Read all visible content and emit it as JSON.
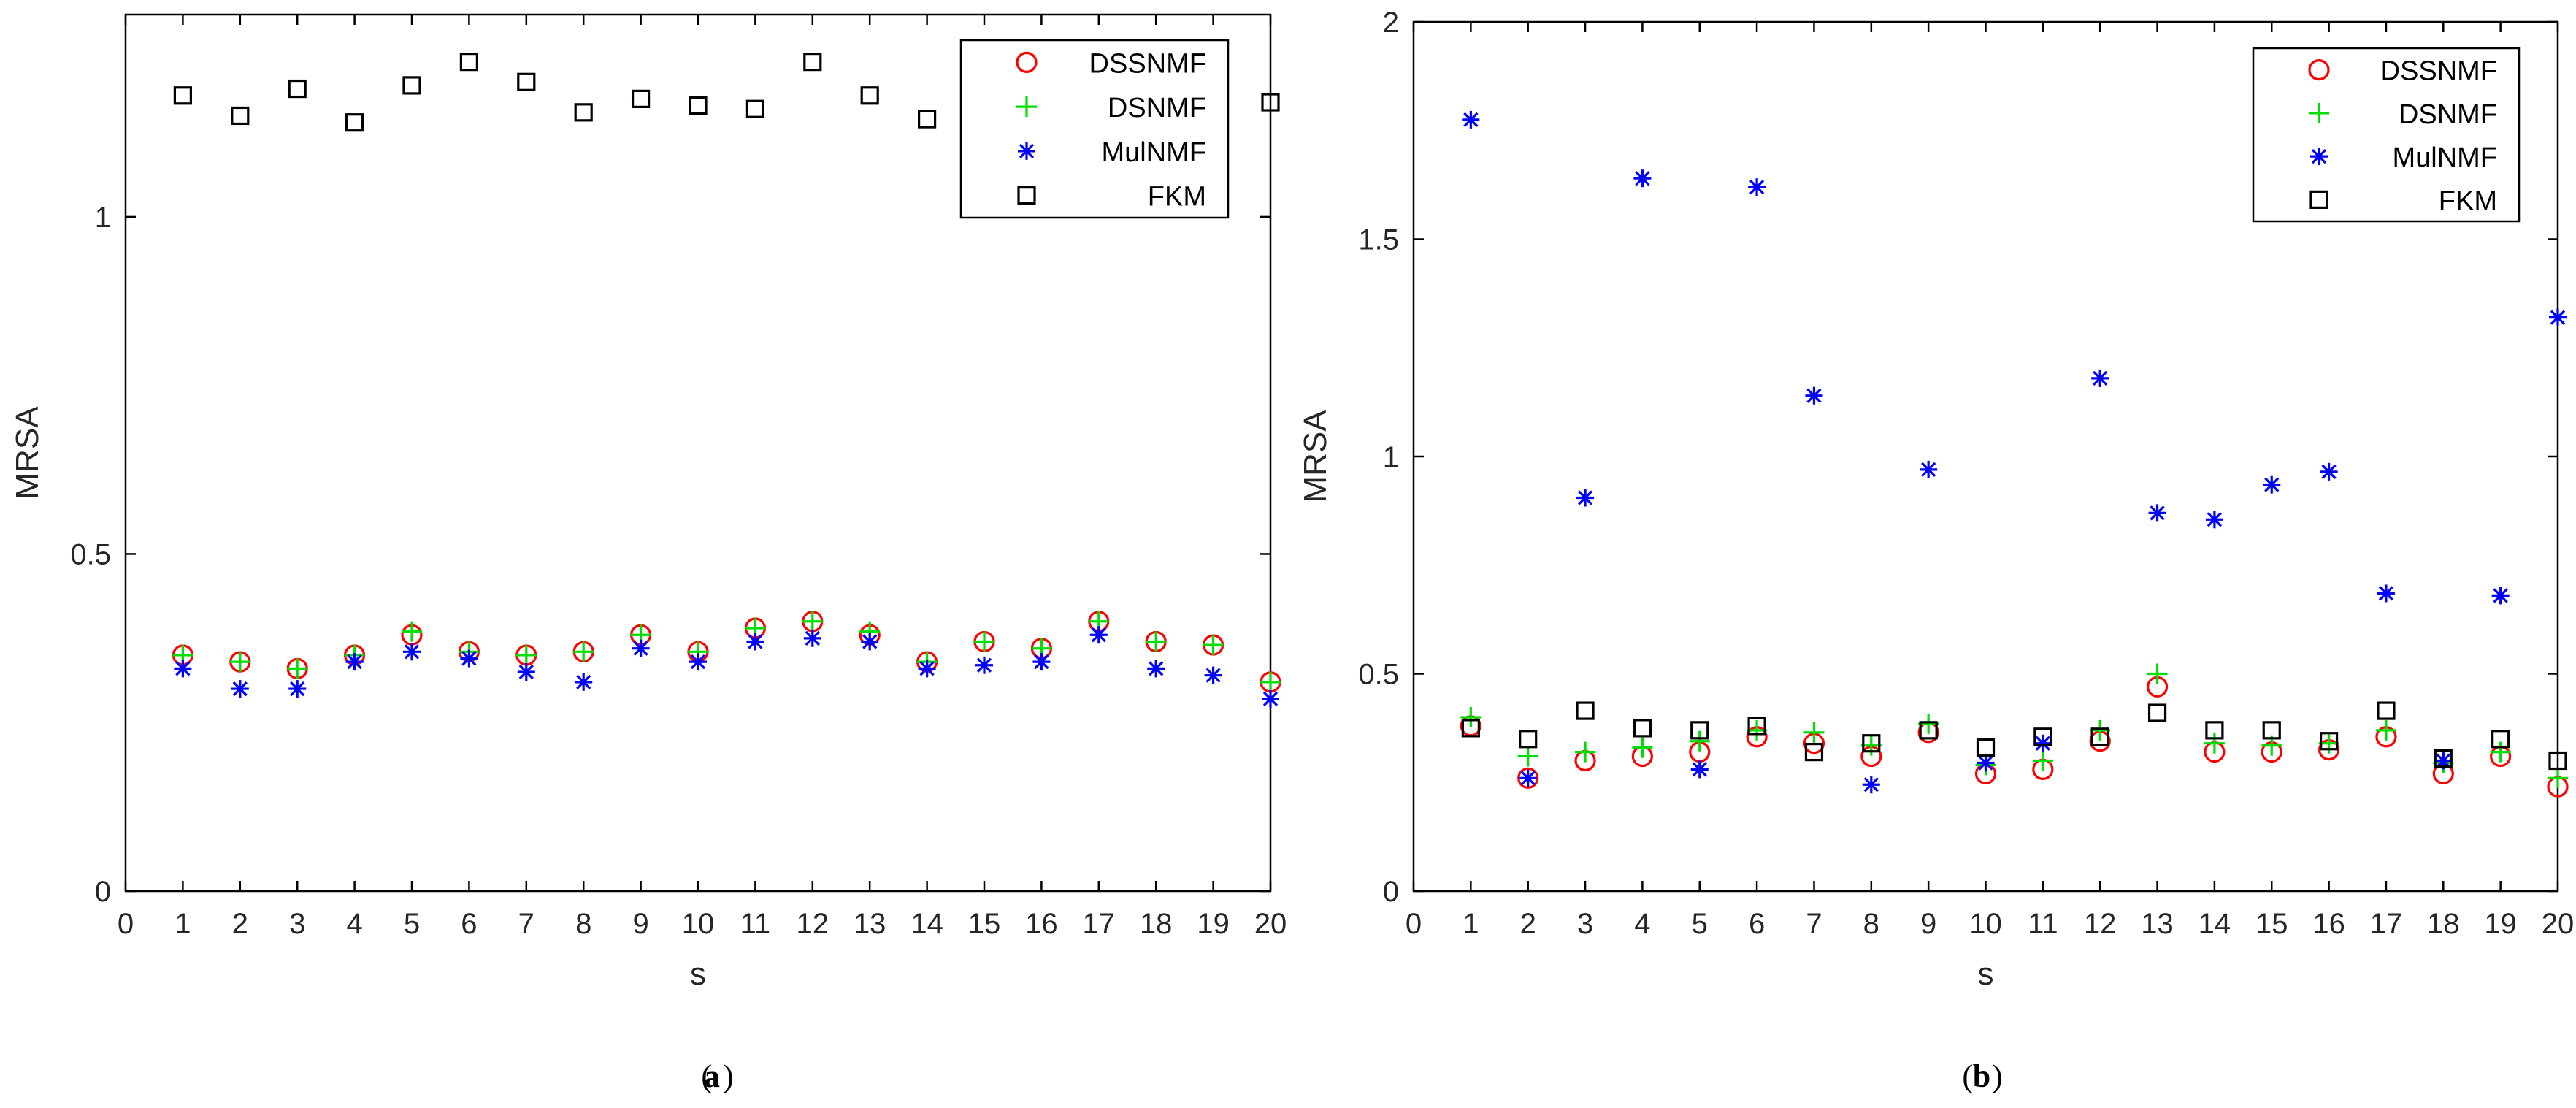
{
  "chart_data": [
    {
      "id": "a",
      "type": "scatter",
      "caption": "(a)",
      "caption_letter": "a",
      "xlabel": "s",
      "ylabel": "MRSA",
      "xlim": [
        0,
        20
      ],
      "ylim": [
        0,
        1.3
      ],
      "xticks": [
        0,
        1,
        2,
        3,
        4,
        5,
        6,
        7,
        8,
        9,
        10,
        11,
        12,
        13,
        14,
        15,
        16,
        17,
        18,
        19,
        20
      ],
      "yticks": [
        0,
        0.5,
        1
      ],
      "ytick_labels": [
        "0",
        "0.5",
        "1"
      ],
      "legend_position": "top-right",
      "x": [
        1,
        2,
        3,
        4,
        5,
        6,
        7,
        8,
        9,
        10,
        11,
        12,
        13,
        14,
        15,
        16,
        17,
        18,
        19,
        20
      ],
      "series": [
        {
          "name": "DSSNMF",
          "marker": "circle",
          "color": "#ff0000",
          "values": [
            0.35,
            0.34,
            0.33,
            0.35,
            0.38,
            0.355,
            0.35,
            0.355,
            0.38,
            0.355,
            0.39,
            0.4,
            0.38,
            0.34,
            0.37,
            0.36,
            0.4,
            0.37,
            0.365,
            0.31
          ]
        },
        {
          "name": "DSNMF",
          "marker": "plus",
          "color": "#00dd00",
          "values": [
            0.35,
            0.34,
            0.33,
            0.35,
            0.385,
            0.355,
            0.35,
            0.355,
            0.38,
            0.355,
            0.39,
            0.4,
            0.385,
            0.34,
            0.37,
            0.36,
            0.4,
            0.37,
            0.365,
            0.31
          ]
        },
        {
          "name": "MulNMF",
          "marker": "asterisk",
          "color": "#0000ff",
          "values": [
            0.33,
            0.3,
            0.3,
            0.34,
            0.355,
            0.345,
            0.325,
            0.31,
            0.36,
            0.34,
            0.37,
            0.375,
            0.37,
            0.33,
            0.335,
            0.34,
            0.38,
            0.33,
            0.32,
            0.285
          ]
        },
        {
          "name": "FKM",
          "marker": "square",
          "color": "#000000",
          "values": [
            1.18,
            1.15,
            1.19,
            1.14,
            1.195,
            1.23,
            1.2,
            1.155,
            1.175,
            1.165,
            1.16,
            1.23,
            1.18,
            1.145,
            null,
            null,
            null,
            null,
            null,
            1.17
          ]
        }
      ]
    },
    {
      "id": "b",
      "type": "scatter",
      "caption": "(b)",
      "caption_letter": "b",
      "xlabel": "s",
      "ylabel": "MRSA",
      "xlim": [
        0,
        20
      ],
      "ylim": [
        0,
        2
      ],
      "xticks": [
        0,
        1,
        2,
        3,
        4,
        5,
        6,
        7,
        8,
        9,
        10,
        11,
        12,
        13,
        14,
        15,
        16,
        17,
        18,
        19,
        20
      ],
      "yticks": [
        0,
        0.5,
        1,
        1.5,
        2
      ],
      "ytick_labels": [
        "0",
        "0.5",
        "1",
        "1.5",
        "2"
      ],
      "legend_position": "top-right",
      "x": [
        1,
        2,
        3,
        4,
        5,
        6,
        7,
        8,
        9,
        10,
        11,
        12,
        13,
        14,
        15,
        16,
        17,
        18,
        19,
        20
      ],
      "series": [
        {
          "name": "DSSNMF",
          "marker": "circle",
          "color": "#ff0000",
          "values": [
            0.38,
            0.26,
            0.3,
            0.31,
            0.32,
            0.355,
            0.34,
            0.31,
            0.365,
            0.27,
            0.28,
            0.345,
            0.47,
            0.32,
            0.32,
            0.325,
            0.355,
            0.27,
            0.31,
            0.24
          ]
        },
        {
          "name": "DSNMF",
          "marker": "plus",
          "color": "#00dd00",
          "values": [
            0.4,
            0.31,
            0.32,
            0.33,
            0.345,
            0.37,
            0.365,
            0.335,
            0.385,
            0.29,
            0.3,
            0.37,
            0.5,
            0.34,
            0.335,
            0.34,
            0.37,
            0.295,
            0.32,
            0.26
          ]
        },
        {
          "name": "MulNMF",
          "marker": "asterisk",
          "color": "#0000ff",
          "values": [
            1.775,
            0.26,
            0.905,
            1.64,
            0.28,
            1.62,
            1.14,
            0.245,
            0.97,
            0.295,
            0.34,
            1.18,
            0.87,
            0.855,
            0.935,
            0.965,
            0.685,
            0.3,
            0.68,
            1.32
          ]
        },
        {
          "name": "FKM",
          "marker": "square",
          "color": "#000000",
          "values": [
            0.375,
            0.35,
            0.415,
            0.375,
            0.37,
            0.38,
            0.32,
            0.34,
            0.37,
            0.33,
            0.355,
            0.355,
            0.41,
            0.37,
            0.37,
            0.345,
            0.415,
            0.305,
            0.35,
            0.3
          ]
        }
      ]
    }
  ]
}
